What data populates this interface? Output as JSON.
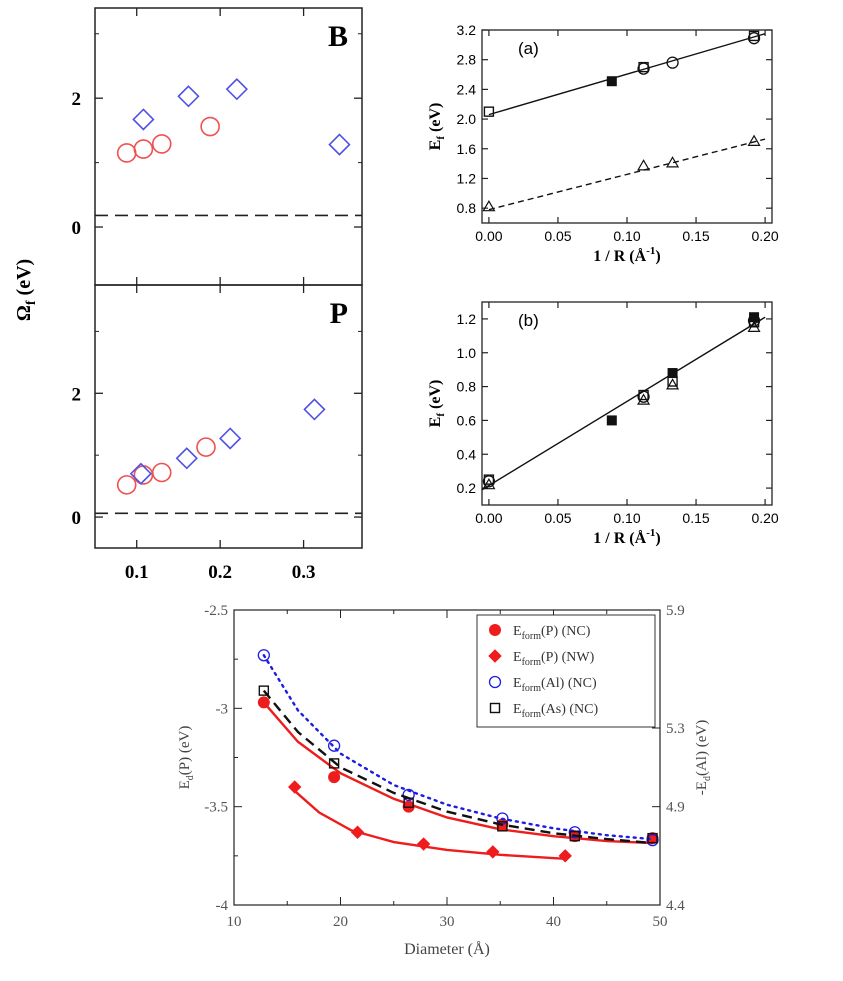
{
  "figure": {
    "shared_ylabel": "Ω",
    "shared_ylabel_sub": "f",
    "shared_ylabel_unit": " (eV)"
  },
  "chart_data": [
    {
      "id": "B",
      "type": "scatter",
      "title": "B",
      "xlim": [
        0.05,
        0.37
      ],
      "ylim": [
        -0.9,
        3.4
      ],
      "xticks": [
        0.1,
        0.2,
        0.3
      ],
      "yticks": [
        0,
        2
      ],
      "ytick_labels": [
        "0",
        "2"
      ],
      "dashed_line_y": 0.18,
      "series": [
        {
          "name": "circles",
          "marker": "circle",
          "color": "#f05050",
          "points": [
            [
              0.088,
              1.15
            ],
            [
              0.108,
              1.21
            ],
            [
              0.13,
              1.29
            ],
            [
              0.188,
              1.56
            ]
          ]
        },
        {
          "name": "diamonds",
          "marker": "diamond",
          "color": "#5050e6",
          "points": [
            [
              0.108,
              1.67
            ],
            [
              0.162,
              2.03
            ],
            [
              0.22,
              2.14
            ],
            [
              0.343,
              1.28
            ]
          ]
        }
      ]
    },
    {
      "id": "P",
      "type": "scatter",
      "title": "P",
      "xlim": [
        0.05,
        0.37
      ],
      "ylim": [
        -0.5,
        3.75
      ],
      "xticks": [
        0.1,
        0.2,
        0.3
      ],
      "xtick_labels": [
        "0.1",
        "0.2",
        "0.3"
      ],
      "yticks": [
        0,
        2
      ],
      "ytick_labels": [
        "0",
        "2"
      ],
      "dashed_line_y": 0.06,
      "series": [
        {
          "name": "circles",
          "marker": "circle",
          "color": "#f05050",
          "points": [
            [
              0.088,
              0.52
            ],
            [
              0.108,
              0.68
            ],
            [
              0.13,
              0.72
            ],
            [
              0.183,
              1.13
            ]
          ]
        },
        {
          "name": "diamonds",
          "marker": "diamond",
          "color": "#5050e6",
          "points": [
            [
              0.105,
              0.7
            ],
            [
              0.16,
              0.95
            ],
            [
              0.212,
              1.27
            ],
            [
              0.313,
              1.74
            ]
          ]
        }
      ]
    },
    {
      "id": "a",
      "type": "scatter",
      "panel_label": "(a)",
      "xlim": [
        -0.005,
        0.205
      ],
      "ylim": [
        0.6,
        3.2
      ],
      "xticks": [
        0.0,
        0.05,
        0.1,
        0.15,
        0.2
      ],
      "xtick_labels": [
        "0.00",
        "0.05",
        "0.10",
        "0.15",
        "0.20"
      ],
      "yticks": [
        0.8,
        1.2,
        1.6,
        2.0,
        2.4,
        2.8,
        3.2
      ],
      "ytick_labels": [
        "0.8",
        "1.2",
        "1.6",
        "2.0",
        "2.4",
        "2.8",
        "3.2"
      ],
      "xlabel": "1 / R (Å",
      "xlabel_sup": "-1",
      "xlabel_end": ")",
      "ylabel": "E",
      "ylabel_sub": "f",
      "ylabel_unit": " (eV)",
      "fit_lines": [
        {
          "style": "solid",
          "x": [
            0.0,
            0.2
          ],
          "y": [
            2.06,
            3.15
          ]
        },
        {
          "style": "dashed",
          "x": [
            0.0,
            0.2
          ],
          "y": [
            0.78,
            1.73
          ]
        }
      ],
      "series": [
        {
          "name": "open squares",
          "marker": "square-open",
          "points": [
            [
              0.0,
              2.1
            ],
            [
              0.112,
              2.7
            ],
            [
              0.192,
              3.12
            ]
          ]
        },
        {
          "name": "filled squares",
          "marker": "square-filled",
          "points": [
            [
              0.089,
              2.51
            ]
          ]
        },
        {
          "name": "open circles",
          "marker": "circle-open",
          "points": [
            [
              0.112,
              2.68
            ],
            [
              0.133,
              2.76
            ],
            [
              0.192,
              3.09
            ]
          ]
        },
        {
          "name": "open triangles",
          "marker": "triangle-open",
          "points": [
            [
              0.0,
              0.82
            ],
            [
              0.112,
              1.37
            ],
            [
              0.133,
              1.41
            ],
            [
              0.192,
              1.7
            ]
          ]
        }
      ]
    },
    {
      "id": "b",
      "type": "scatter",
      "panel_label": "(b)",
      "xlim": [
        -0.005,
        0.205
      ],
      "ylim": [
        0.1,
        1.3
      ],
      "xticks": [
        0.0,
        0.05,
        0.1,
        0.15,
        0.2
      ],
      "xtick_labels": [
        "0.00",
        "0.05",
        "0.10",
        "0.15",
        "0.20"
      ],
      "yticks": [
        0.2,
        0.4,
        0.6,
        0.8,
        1.0,
        1.2
      ],
      "ytick_labels": [
        "0.2",
        "0.4",
        "0.6",
        "0.8",
        "1.0",
        "1.2"
      ],
      "xlabel": "1 / R (Å",
      "xlabel_sup": "-1",
      "xlabel_end": ")",
      "ylabel": "E",
      "ylabel_sub": "f",
      "ylabel_unit": " (eV)",
      "fit_lines": [
        {
          "style": "solid",
          "x": [
            -0.005,
            0.2
          ],
          "y": [
            0.19,
            1.21
          ]
        }
      ],
      "series": [
        {
          "name": "open squares",
          "marker": "square-open",
          "points": [
            [
              0.0,
              0.25
            ],
            [
              0.112,
              0.75
            ],
            [
              0.133,
              0.83
            ],
            [
              0.192,
              1.18
            ]
          ]
        },
        {
          "name": "filled squares",
          "marker": "square-filled",
          "points": [
            [
              0.089,
              0.6
            ],
            [
              0.133,
              0.88
            ],
            [
              0.192,
              1.21
            ]
          ]
        },
        {
          "name": "open circles",
          "marker": "circle-open",
          "points": [
            [
              0.0,
              0.24
            ],
            [
              0.112,
              0.74
            ],
            [
              0.192,
              1.19
            ]
          ]
        },
        {
          "name": "open triangles",
          "marker": "triangle-open",
          "points": [
            [
              0.0,
              0.22
            ],
            [
              0.112,
              0.72
            ],
            [
              0.133,
              0.81
            ],
            [
              0.192,
              1.15
            ]
          ]
        }
      ]
    },
    {
      "id": "bottom",
      "type": "line",
      "xlim": [
        10,
        50
      ],
      "ylim": [
        -4,
        -2.5
      ],
      "y2lim": [
        4.4,
        5.9
      ],
      "xticks": [
        10,
        20,
        30,
        40,
        50
      ],
      "xtick_labels": [
        "10",
        "20",
        "30",
        "40",
        "50"
      ],
      "yticks": [
        -4,
        -3.5,
        -3,
        -2.5
      ],
      "ytick_labels": [
        "-4",
        "-3.5",
        "-3",
        "-2.5"
      ],
      "y2ticks": [
        4.4,
        4.9,
        5.3,
        5.9
      ],
      "y2tick_labels": [
        "4.4",
        "4.9",
        "5.3",
        "5.9"
      ],
      "xlabel": "Diameter (Å)",
      "ylabel": "E",
      "ylabel_sub": "d",
      "ylabel_unit": "(P) (eV)",
      "y2label": "-E",
      "y2label_sub": "d",
      "y2label_unit": "(Al) (eV)",
      "legend_position": "top-right",
      "series": [
        {
          "name": "P_NC",
          "legend": "E",
          "legend_sub": "form",
          "legend_rest": "(P) (NC)",
          "marker": "circle-filled",
          "color": "#ee1c1c",
          "line": "solid",
          "x": [
            12.8,
            19.4,
            26.4,
            35.2,
            42.0,
            49.3
          ],
          "y": [
            -2.97,
            -3.35,
            -3.5,
            -3.59,
            -3.65,
            -3.66
          ],
          "fit_x": [
            12.8,
            16,
            20,
            25,
            30,
            35,
            40,
            45,
            49.3
          ],
          "fit_y": [
            -2.97,
            -3.17,
            -3.33,
            -3.46,
            -3.555,
            -3.615,
            -3.65,
            -3.675,
            -3.685
          ]
        },
        {
          "name": "P_NW",
          "legend": "E",
          "legend_sub": "form",
          "legend_rest": "(P) (NW)",
          "marker": "diamond-filled",
          "color": "#ee1c1c",
          "line": "solid",
          "x": [
            15.7,
            21.6,
            27.8,
            34.3,
            41.1
          ],
          "y": [
            -3.4,
            -3.63,
            -3.69,
            -3.73,
            -3.75
          ],
          "fit_x": [
            15.7,
            18,
            21,
            25,
            30,
            35,
            41.1
          ],
          "fit_y": [
            -3.42,
            -3.53,
            -3.62,
            -3.68,
            -3.72,
            -3.745,
            -3.765
          ]
        },
        {
          "name": "Al_NC",
          "legend": "E",
          "legend_sub": "form",
          "legend_rest": "(Al) (NC)",
          "marker": "circle-open",
          "color": "#1d1de3",
          "line": "dotted",
          "x": [
            12.8,
            19.4,
            26.4,
            35.2,
            42.0,
            49.3
          ],
          "y": [
            -2.73,
            -3.19,
            -3.44,
            -3.56,
            -3.63,
            -3.67
          ],
          "fit_x": [
            12.8,
            16,
            20,
            25,
            30,
            35,
            40,
            45,
            49.3
          ],
          "fit_y": [
            -2.73,
            -3.01,
            -3.23,
            -3.39,
            -3.49,
            -3.56,
            -3.61,
            -3.645,
            -3.665
          ]
        },
        {
          "name": "As_NC",
          "legend": "E",
          "legend_sub": "form",
          "legend_rest": "(As) (NC)",
          "marker": "square-open",
          "color": "#111111",
          "line": "dashed",
          "x": [
            12.8,
            19.4,
            26.4,
            35.2,
            42.0,
            49.3
          ],
          "y": [
            -2.91,
            -3.28,
            -3.48,
            -3.6,
            -3.65,
            -3.66
          ],
          "fit_x": [
            12.8,
            16,
            20,
            25,
            30,
            35,
            40,
            45,
            49.3
          ],
          "fit_y": [
            -2.91,
            -3.12,
            -3.3,
            -3.43,
            -3.525,
            -3.59,
            -3.635,
            -3.665,
            -3.685
          ]
        }
      ]
    }
  ]
}
